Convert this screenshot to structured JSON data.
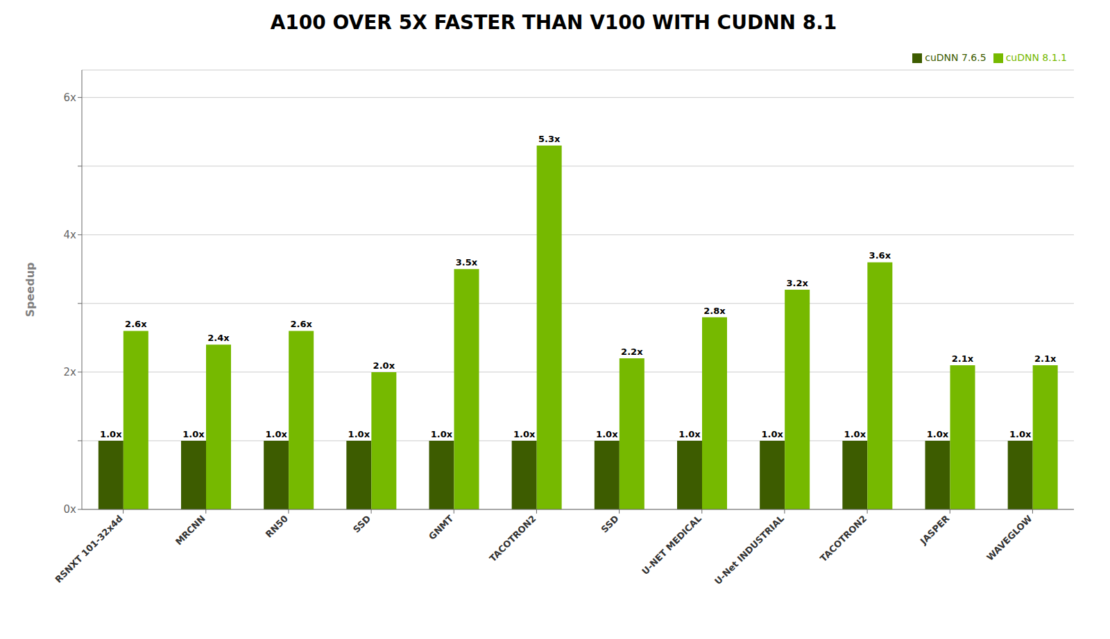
{
  "chart_data": {
    "type": "bar",
    "title": "A100 OVER 5X FASTER THAN V100 WITH CUDNN 8.1",
    "ylabel": "Speedup",
    "categories": [
      "RSNXT 101-32x4d",
      "MRCNN",
      "RN50",
      "SSD",
      "GNMT",
      "TACOTRON2",
      "SSD",
      "U-NET MEDICAL",
      "U-Net INDUSTRIAL",
      "TACOTRON2",
      "JASPER",
      "WAVEGLOW"
    ],
    "series": [
      {
        "name": "cuDNN 7.6.5",
        "color": "#3d5c00",
        "values": [
          1.0,
          1.0,
          1.0,
          1.0,
          1.0,
          1.0,
          1.0,
          1.0,
          1.0,
          1.0,
          1.0,
          1.0
        ],
        "value_labels": [
          "1.0x",
          "1.0x",
          "1.0x",
          "1.0x",
          "1.0x",
          "1.0x",
          "1.0x",
          "1.0x",
          "1.0x",
          "1.0x",
          "1.0x",
          "1.0x"
        ]
      },
      {
        "name": "cuDNN 8.1.1",
        "color": "#76b900",
        "values": [
          2.6,
          2.4,
          2.6,
          2.0,
          3.5,
          5.3,
          2.2,
          2.8,
          3.2,
          3.6,
          2.1,
          2.1
        ],
        "value_labels": [
          "2.6x",
          "2.4x",
          "2.6x",
          "2.0x",
          "3.5x",
          "5.3x",
          "2.2x",
          "2.8x",
          "3.2x",
          "3.6x",
          "2.1x",
          "2.1x"
        ]
      }
    ],
    "ylim": [
      0,
      6.4
    ],
    "yticks": [
      {
        "value": 0,
        "label": "0x"
      },
      {
        "value": 1,
        "label": null
      },
      {
        "value": 2,
        "label": "2x"
      },
      {
        "value": 3,
        "label": null
      },
      {
        "value": 4,
        "label": "4x"
      },
      {
        "value": 5,
        "label": null
      },
      {
        "value": 6,
        "label": "6x"
      }
    ],
    "grid": true,
    "legend": "upper right",
    "data_labels": true
  }
}
